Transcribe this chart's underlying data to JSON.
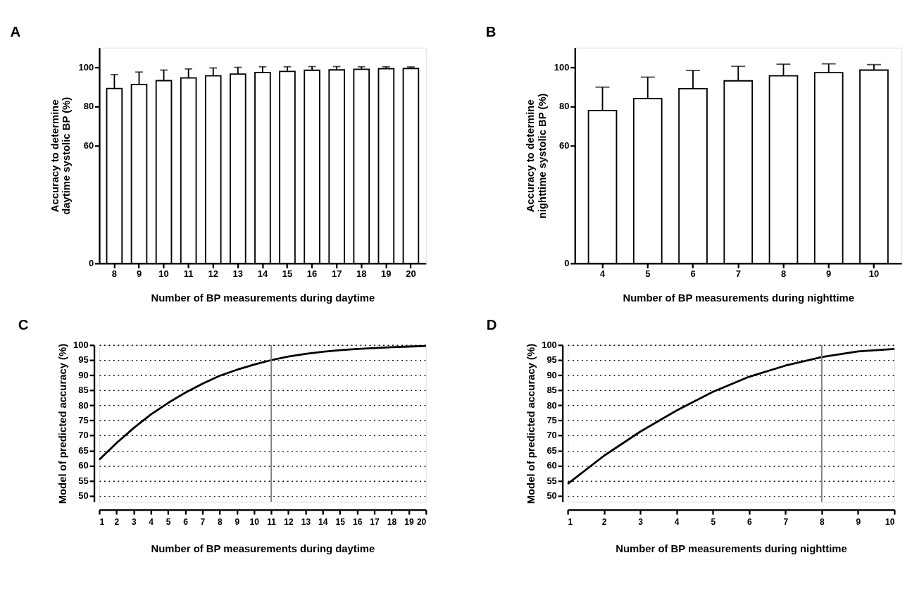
{
  "chart_data": [
    {
      "type": "bar",
      "title": "A",
      "ylabel": "Accuracy to determine\ndaytime systolic BP (%)",
      "xlabel": "Number of BP measurements during daytime",
      "categories": [
        "8",
        "9",
        "10",
        "11",
        "12",
        "13",
        "14",
        "15",
        "16",
        "17",
        "18",
        "19",
        "20"
      ],
      "values": [
        89.2,
        91.3,
        93.2,
        94.6,
        95.7,
        96.6,
        97.4,
        97.9,
        98.5,
        98.7,
        99.0,
        99.3,
        99.4
      ],
      "errors": [
        7.1,
        6.3,
        5.4,
        4.6,
        4.0,
        3.4,
        2.9,
        2.4,
        1.9,
        1.7,
        1.3,
        1.0,
        0.8
      ],
      "ylim": [
        0,
        110
      ],
      "yticks": [
        0,
        60,
        80,
        100
      ],
      "grid": false
    },
    {
      "type": "bar",
      "title": "B",
      "ylabel": "Accuracy to determine\nnighttime systolic BP (%)",
      "xlabel": "Number of BP measurements during nighttime",
      "categories": [
        "4",
        "5",
        "6",
        "7",
        "8",
        "9",
        "10"
      ],
      "values": [
        78.0,
        84.1,
        89.1,
        93.1,
        95.7,
        97.3,
        98.6
      ],
      "errors": [
        11.9,
        10.9,
        9.3,
        7.4,
        5.9,
        4.5,
        2.8
      ],
      "ylim": [
        0,
        110
      ],
      "yticks": [
        0,
        60,
        80,
        100
      ],
      "grid": false
    },
    {
      "type": "line",
      "title": "C",
      "ylabel": "Model of predicted accuracy (%)",
      "xlabel": "Number of BP measurements during daytime",
      "x": [
        1,
        2,
        3,
        4,
        5,
        6,
        7,
        8,
        9,
        10,
        11,
        12,
        13,
        14,
        15,
        16,
        17,
        18,
        19,
        20
      ],
      "series": [
        {
          "color": "#000000",
          "values": [
            62.0,
            67.5,
            72.5,
            77.0,
            80.8,
            84.2,
            87.2,
            89.8,
            91.8,
            93.5,
            95.0,
            96.2,
            97.1,
            97.8,
            98.3,
            98.7,
            99.0,
            99.3,
            99.5,
            99.7
          ]
        }
      ],
      "xlim": [
        1,
        20
      ],
      "xticks": [
        1,
        2,
        3,
        4,
        5,
        6,
        7,
        8,
        9,
        10,
        11,
        12,
        13,
        14,
        15,
        16,
        17,
        18,
        19,
        20
      ],
      "ylim": [
        48,
        100
      ],
      "yticks": [
        50,
        55,
        60,
        65,
        70,
        75,
        80,
        85,
        90,
        95,
        100
      ],
      "grid": "y",
      "line_style": "solid",
      "marker": "none",
      "ref_lines": [
        {
          "axis": "x",
          "value": 11,
          "color": "#808080"
        }
      ]
    },
    {
      "type": "line",
      "title": "D",
      "ylabel": "Model of predicted accuracy (%)",
      "xlabel": "Number of BP measurements during nighttime",
      "x": [
        1,
        2,
        3,
        4,
        5,
        6,
        7,
        8,
        9,
        10
      ],
      "series": [
        {
          "color": "#000000",
          "values": [
            54.0,
            63.3,
            71.3,
            78.3,
            84.5,
            89.5,
            93.2,
            96.0,
            97.9,
            98.7
          ]
        }
      ],
      "xlim": [
        1,
        10
      ],
      "xticks": [
        1,
        2,
        3,
        4,
        5,
        6,
        7,
        8,
        9,
        10
      ],
      "ylim": [
        48,
        100
      ],
      "yticks": [
        50,
        55,
        60,
        65,
        70,
        75,
        80,
        85,
        90,
        95,
        100
      ],
      "grid": "y",
      "line_style": "solid",
      "marker": "none",
      "ref_lines": [
        {
          "axis": "x",
          "value": 8,
          "color": "#808080"
        }
      ]
    }
  ]
}
